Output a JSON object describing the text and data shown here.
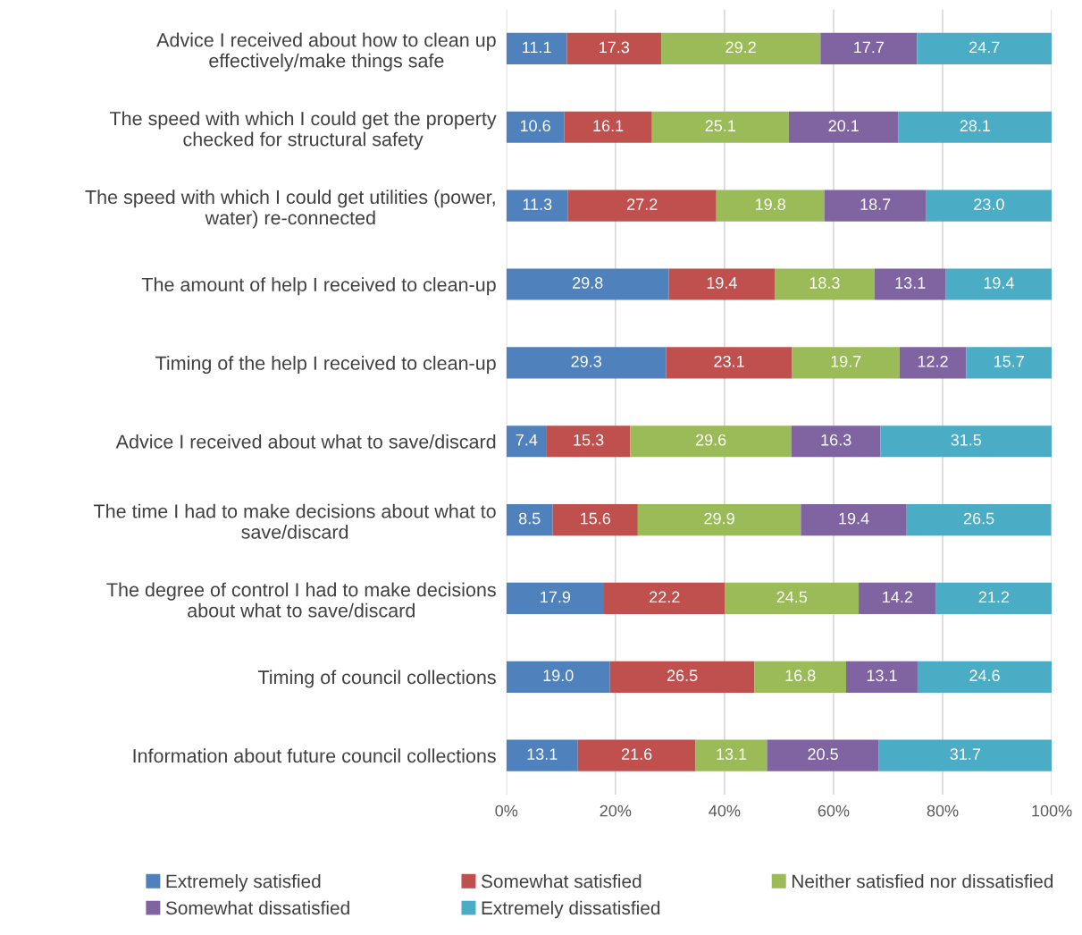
{
  "chart_data": {
    "type": "bar",
    "orientation": "horizontal",
    "stacked": true,
    "grid": "x",
    "legend": "bottom",
    "categories": [
      "Advice I received about how to clean up effectively/make things safe",
      "The speed with which I could get the property checked for structural safety",
      "The speed with which I could get utilities (power, water) re-connected",
      "The amount of help I received to clean-up",
      "Timing of the help I received to clean-up",
      "Advice I received about what to save/discard",
      "The time I had to make decisions about what to save/discard",
      "The degree of control I had to make decisions about what to save/discard",
      "Timing of council collections",
      "Information about future council collections"
    ],
    "series": [
      {
        "name": "Extremely satisfied",
        "color": "#4f81bd",
        "values": [
          11.1,
          10.6,
          11.3,
          29.8,
          29.3,
          7.4,
          8.5,
          17.9,
          19.0,
          13.1
        ],
        "value_labels": [
          "11.1",
          "10.6",
          "11.3",
          "29.8",
          "29.3",
          "7.4",
          "8.5",
          "17.9",
          "19.0",
          "13.1"
        ]
      },
      {
        "name": "Somewhat satisfied",
        "color": "#c0504d",
        "values": [
          17.3,
          16.1,
          27.2,
          19.4,
          23.1,
          15.3,
          15.6,
          22.2,
          26.5,
          21.6
        ],
        "value_labels": [
          "17.3",
          "16.1",
          "27.2",
          "19.4",
          "23.1",
          "15.3",
          "15.6",
          "22.2",
          "26.5",
          "21.6"
        ]
      },
      {
        "name": "Neither satisfied nor dissatisfied",
        "color": "#9bbb59",
        "values": [
          29.2,
          25.1,
          19.8,
          18.3,
          19.7,
          29.6,
          29.9,
          24.5,
          16.8,
          13.1
        ],
        "value_labels": [
          "29.2",
          "25.1",
          "19.8",
          "18.3",
          "19.7",
          "29.6",
          "29.9",
          "24.5",
          "16.8",
          "13.1"
        ]
      },
      {
        "name": "Somewhat dissatisfied",
        "color": "#8064a2",
        "values": [
          17.7,
          20.1,
          18.7,
          13.1,
          12.2,
          16.3,
          19.4,
          14.2,
          13.1,
          20.5
        ],
        "value_labels": [
          "17.7",
          "20.1",
          "18.7",
          "13.1",
          "12.2",
          "16.3",
          "19.4",
          "14.2",
          "13.1",
          "20.5"
        ]
      },
      {
        "name": "Extremely dissatisfied",
        "color": "#4bacc6",
        "values": [
          24.7,
          28.1,
          23.0,
          19.4,
          15.7,
          31.5,
          26.5,
          21.2,
          24.6,
          31.7
        ],
        "value_labels": [
          "24.7",
          "28.1",
          "23.0",
          "19.4",
          "15.7",
          "31.5",
          "26.5",
          "21.2",
          "24.6",
          "31.7"
        ]
      }
    ],
    "xlim": [
      0,
      100
    ],
    "xticks": [
      {
        "value": 0,
        "label": "0%"
      },
      {
        "value": 20,
        "label": "20%"
      },
      {
        "value": 40,
        "label": "40%"
      },
      {
        "value": 60,
        "label": "60%"
      },
      {
        "value": 80,
        "label": "80%"
      },
      {
        "value": 100,
        "label": "100%"
      }
    ]
  }
}
